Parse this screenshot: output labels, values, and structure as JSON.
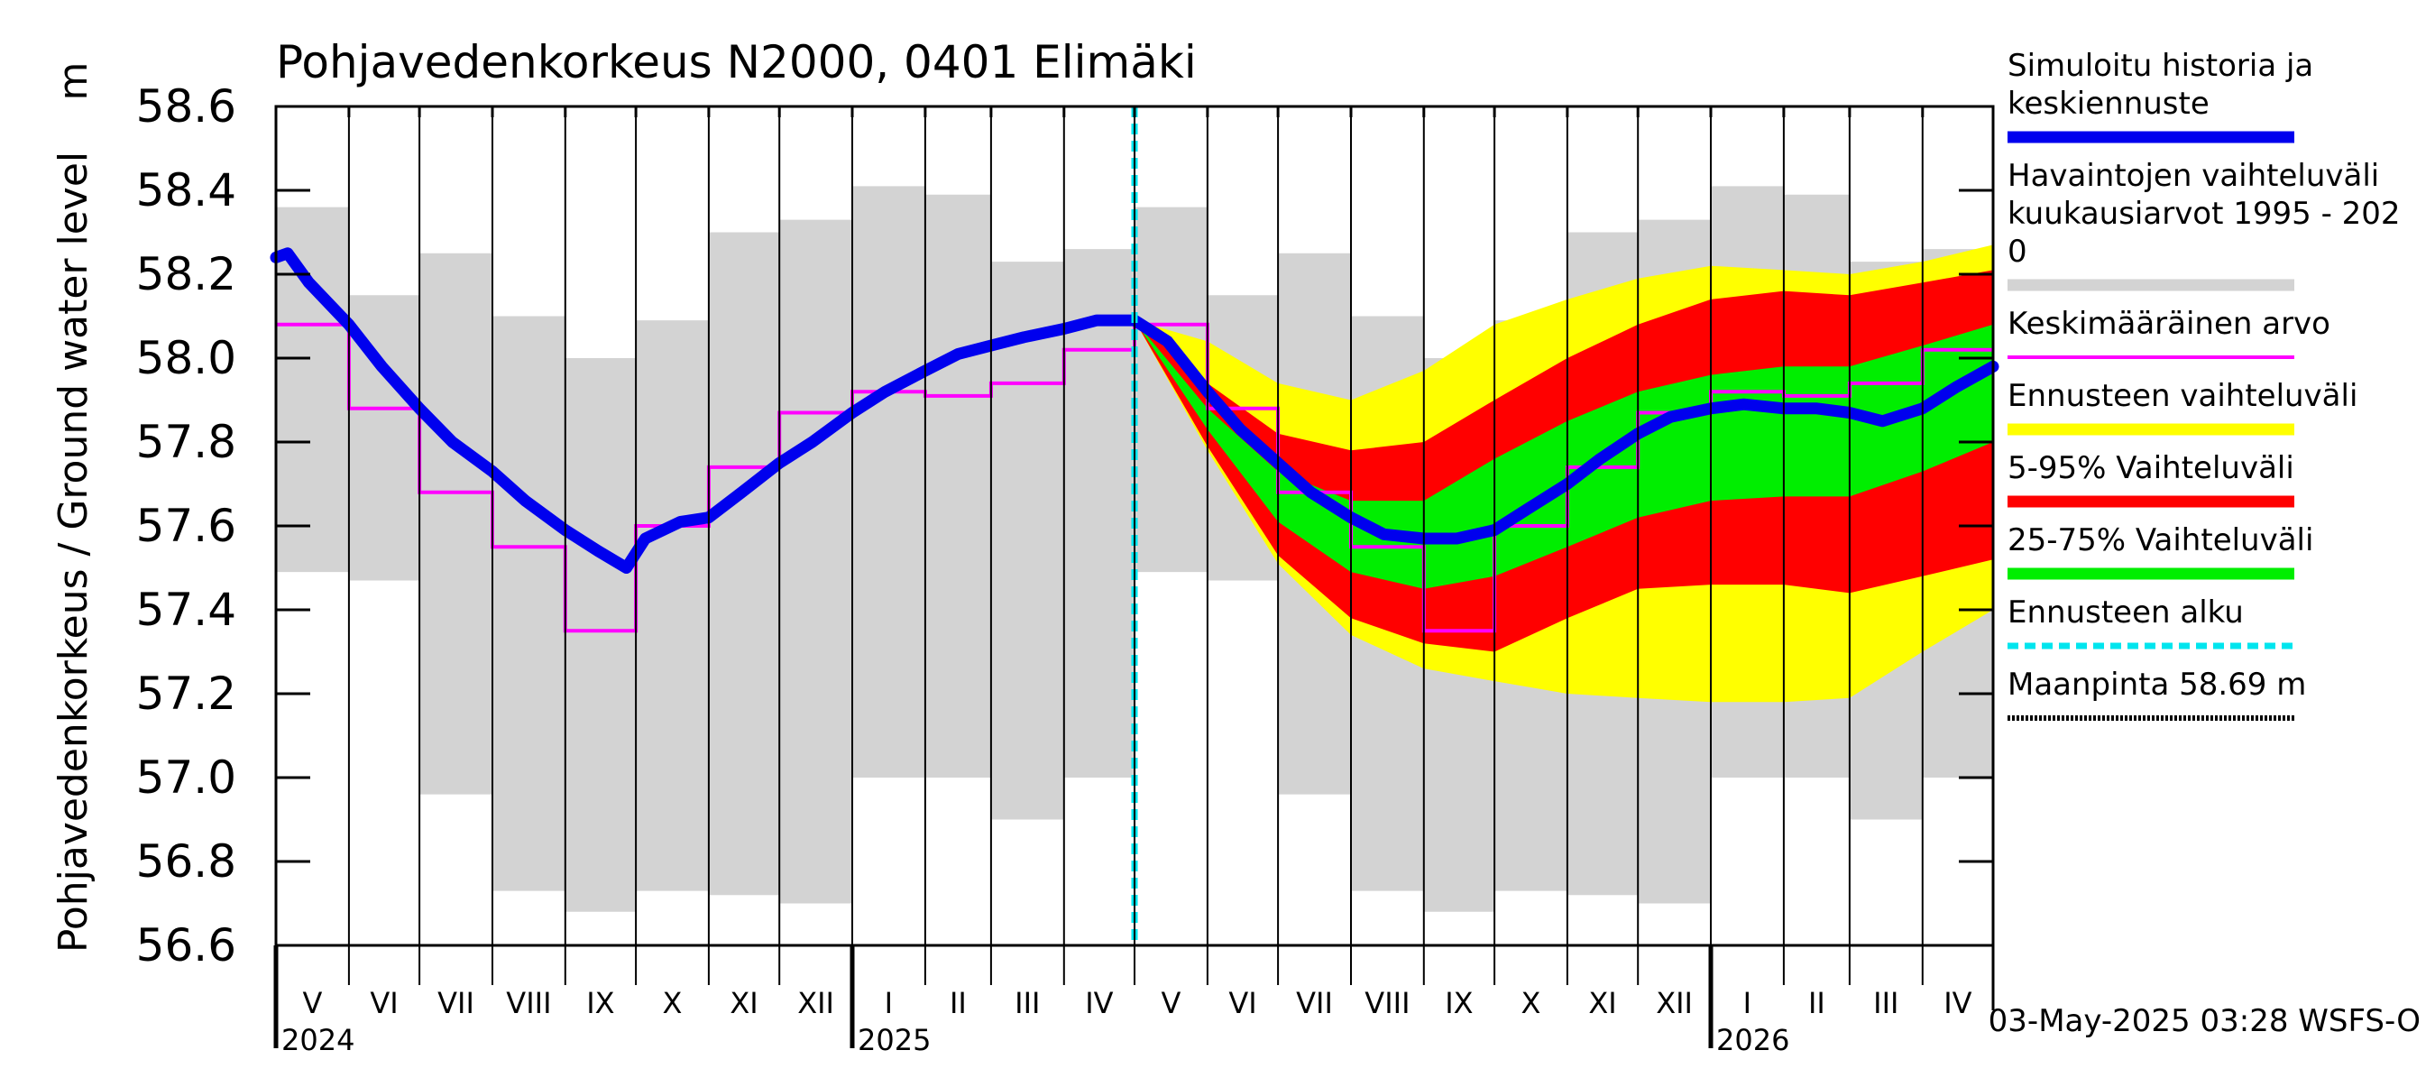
{
  "chart_data": {
    "type": "area",
    "title": "Pohjavedenkorkeus N2000, 0401 Elimäki",
    "ylabel": "Pohjavedenkorkeus / Ground water level",
    "yunit": "m",
    "ylim": [
      56.6,
      58.6
    ],
    "yticks": [
      "56.6",
      "56.8",
      "57.0",
      "57.2",
      "57.4",
      "57.6",
      "57.8",
      "58.0",
      "58.2",
      "58.4",
      "58.6"
    ],
    "xlim": [
      "2024-05-01",
      "2026-05-01"
    ],
    "months": [
      {
        "start": "2024-05-01",
        "end": "2024-06-01",
        "label": "V"
      },
      {
        "start": "2024-06-01",
        "end": "2024-07-01",
        "label": "VI"
      },
      {
        "start": "2024-07-01",
        "end": "2024-08-01",
        "label": "VII"
      },
      {
        "start": "2024-08-01",
        "end": "2024-09-01",
        "label": "VIII"
      },
      {
        "start": "2024-09-01",
        "end": "2024-10-01",
        "label": "IX"
      },
      {
        "start": "2024-10-01",
        "end": "2024-11-01",
        "label": "X"
      },
      {
        "start": "2024-11-01",
        "end": "2024-12-01",
        "label": "XI"
      },
      {
        "start": "2024-12-01",
        "end": "2025-01-01",
        "label": "XII"
      },
      {
        "start": "2025-01-01",
        "end": "2025-02-01",
        "label": "I"
      },
      {
        "start": "2025-02-01",
        "end": "2025-03-01",
        "label": "II"
      },
      {
        "start": "2025-03-01",
        "end": "2025-04-01",
        "label": "III"
      },
      {
        "start": "2025-04-01",
        "end": "2025-05-01",
        "label": "IV"
      },
      {
        "start": "2025-05-01",
        "end": "2025-06-01",
        "label": "V"
      },
      {
        "start": "2025-06-01",
        "end": "2025-07-01",
        "label": "VI"
      },
      {
        "start": "2025-07-01",
        "end": "2025-08-01",
        "label": "VII"
      },
      {
        "start": "2025-08-01",
        "end": "2025-09-01",
        "label": "VIII"
      },
      {
        "start": "2025-09-01",
        "end": "2025-10-01",
        "label": "IX"
      },
      {
        "start": "2025-10-01",
        "end": "2025-11-01",
        "label": "X"
      },
      {
        "start": "2025-11-01",
        "end": "2025-12-01",
        "label": "XI"
      },
      {
        "start": "2025-12-01",
        "end": "2026-01-01",
        "label": "XII"
      },
      {
        "start": "2026-01-01",
        "end": "2026-02-01",
        "label": "I"
      },
      {
        "start": "2026-02-01",
        "end": "2026-03-01",
        "label": "II"
      },
      {
        "start": "2026-03-01",
        "end": "2026-04-01",
        "label": "III"
      },
      {
        "start": "2026-04-01",
        "end": "2026-05-01",
        "label": "IV"
      }
    ],
    "years": [
      {
        "label": "2024",
        "date": "2024-05-01",
        "boundary": "2024-05-01"
      },
      {
        "label": "2025",
        "date": "2025-01-01",
        "boundary": "2025-01-01"
      },
      {
        "label": "2026",
        "date": "2026-01-01",
        "boundary": "2026-01-01"
      }
    ],
    "observed_range": {
      "name": "Havaintojen vaihteluväli kuukausiarvot 1995 - 2020",
      "months_max": [
        58.36,
        58.15,
        58.25,
        58.1,
        58.0,
        58.09,
        58.3,
        58.33,
        58.41,
        58.39,
        58.23,
        58.26,
        58.36
      ],
      "months_min": [
        57.49,
        57.47,
        56.96,
        56.73,
        56.68,
        56.73,
        56.72,
        56.7,
        57.0,
        57.0,
        56.9,
        57.0,
        57.49
      ]
    },
    "mean_monthly": {
      "name": "Keskimääräinen arvo",
      "values": [
        58.08,
        57.88,
        57.68,
        57.55,
        57.35,
        57.6,
        57.74,
        57.87,
        57.92,
        57.91,
        57.94,
        58.02,
        58.08,
        57.88,
        57.68,
        57.55,
        57.35,
        57.6,
        57.74,
        57.87,
        57.92,
        57.91,
        57.94,
        58.02
      ]
    },
    "simulated": {
      "name": "Simuloitu historia ja keskiennuste",
      "points": [
        [
          "2024-05-01",
          58.24
        ],
        [
          "2024-05-06",
          58.25
        ],
        [
          "2024-05-15",
          58.18
        ],
        [
          "2024-06-01",
          58.08
        ],
        [
          "2024-06-15",
          57.98
        ],
        [
          "2024-07-01",
          57.88
        ],
        [
          "2024-07-15",
          57.8
        ],
        [
          "2024-08-01",
          57.73
        ],
        [
          "2024-08-15",
          57.66
        ],
        [
          "2024-09-01",
          57.59
        ],
        [
          "2024-09-15",
          57.54
        ],
        [
          "2024-09-27",
          57.5
        ],
        [
          "2024-10-05",
          57.57
        ],
        [
          "2024-10-20",
          57.61
        ],
        [
          "2024-11-01",
          57.62
        ],
        [
          "2024-11-15",
          57.68
        ],
        [
          "2024-12-01",
          57.75
        ],
        [
          "2024-12-15",
          57.8
        ],
        [
          "2025-01-01",
          57.87
        ],
        [
          "2025-01-15",
          57.92
        ],
        [
          "2025-02-01",
          57.97
        ],
        [
          "2025-02-15",
          58.01
        ],
        [
          "2025-03-01",
          58.03
        ],
        [
          "2025-03-15",
          58.05
        ],
        [
          "2025-04-01",
          58.07
        ],
        [
          "2025-04-15",
          58.09
        ],
        [
          "2025-05-01",
          58.09
        ],
        [
          "2025-05-15",
          58.04
        ],
        [
          "2025-06-01",
          57.92
        ],
        [
          "2025-06-15",
          57.83
        ],
        [
          "2025-07-01",
          57.75
        ],
        [
          "2025-07-15",
          57.68
        ],
        [
          "2025-08-01",
          57.62
        ],
        [
          "2025-08-15",
          57.58
        ],
        [
          "2025-09-01",
          57.57
        ],
        [
          "2025-09-15",
          57.57
        ],
        [
          "2025-10-01",
          57.59
        ],
        [
          "2025-10-15",
          57.64
        ],
        [
          "2025-11-01",
          57.7
        ],
        [
          "2025-11-15",
          57.76
        ],
        [
          "2025-12-01",
          57.82
        ],
        [
          "2025-12-15",
          57.86
        ],
        [
          "2026-01-01",
          57.88
        ],
        [
          "2026-01-15",
          57.89
        ],
        [
          "2026-02-01",
          57.88
        ],
        [
          "2026-02-15",
          57.88
        ],
        [
          "2026-03-01",
          57.87
        ],
        [
          "2026-03-15",
          57.85
        ],
        [
          "2026-04-01",
          57.88
        ],
        [
          "2026-04-15",
          57.93
        ],
        [
          "2026-05-01",
          57.98
        ]
      ]
    },
    "forecast_bands": {
      "dates": [
        "2025-05-01",
        "2025-06-01",
        "2025-07-01",
        "2025-08-01",
        "2025-09-01",
        "2025-10-01",
        "2025-11-01",
        "2025-12-01",
        "2026-01-01",
        "2026-02-01",
        "2026-03-01",
        "2026-04-01",
        "2026-05-01"
      ],
      "ennuste_max": [
        58.09,
        58.04,
        57.94,
        57.9,
        57.97,
        58.08,
        58.14,
        58.19,
        58.22,
        58.21,
        58.2,
        58.23,
        58.27
      ],
      "p95": [
        58.09,
        57.94,
        57.82,
        57.78,
        57.8,
        57.9,
        58.0,
        58.08,
        58.14,
        58.16,
        58.15,
        58.18,
        58.21
      ],
      "p75": [
        58.09,
        57.88,
        57.73,
        57.66,
        57.66,
        57.76,
        57.85,
        57.92,
        57.96,
        57.98,
        57.98,
        58.03,
        58.08
      ],
      "p25": [
        58.09,
        57.83,
        57.61,
        57.49,
        57.45,
        57.48,
        57.55,
        57.62,
        57.66,
        57.67,
        57.67,
        57.73,
        57.8
      ],
      "p05": [
        58.09,
        57.79,
        57.53,
        57.38,
        57.32,
        57.3,
        57.38,
        57.45,
        57.46,
        57.46,
        57.44,
        57.48,
        57.52
      ],
      "ennuste_min": [
        58.09,
        57.78,
        57.51,
        57.34,
        57.26,
        57.23,
        57.2,
        57.19,
        57.18,
        57.18,
        57.19,
        57.3,
        57.4
      ]
    },
    "forecast_start": "2025-05-01",
    "ground_level": 58.69,
    "legend": [
      {
        "key": "sim",
        "lines": [
          "Simuloitu historia ja",
          "keskiennuste"
        ],
        "color": "#0000ee",
        "style": "thick"
      },
      {
        "key": "obs",
        "lines": [
          "Havaintojen vaihteluväli",
          " kuukausiarvot 1995 - 202",
          "0"
        ],
        "color": "#d3d3d3",
        "style": "thick"
      },
      {
        "key": "mean",
        "lines": [
          "Keskimääräinen arvo"
        ],
        "color": "#ff00ff",
        "style": "thin"
      },
      {
        "key": "fc",
        "lines": [
          "Ennusteen vaihteluväli"
        ],
        "color": "#ffff00",
        "style": "thick"
      },
      {
        "key": "p595",
        "lines": [
          "5-95% Vaihteluväli"
        ],
        "color": "#ff0000",
        "style": "thick"
      },
      {
        "key": "p2575",
        "lines": [
          "25-75% Vaihteluväli"
        ],
        "color": "#00ee00",
        "style": "thick"
      },
      {
        "key": "start",
        "lines": [
          "Ennusteen alku"
        ],
        "color": "#00e5ee",
        "style": "dashed"
      },
      {
        "key": "ground",
        "lines": [
          "Maanpinta 58.69 m"
        ],
        "color": "#000000",
        "style": "dotted"
      }
    ],
    "legend_placement": "right",
    "footer": "03-May-2025 03:28 WSFS-O"
  }
}
